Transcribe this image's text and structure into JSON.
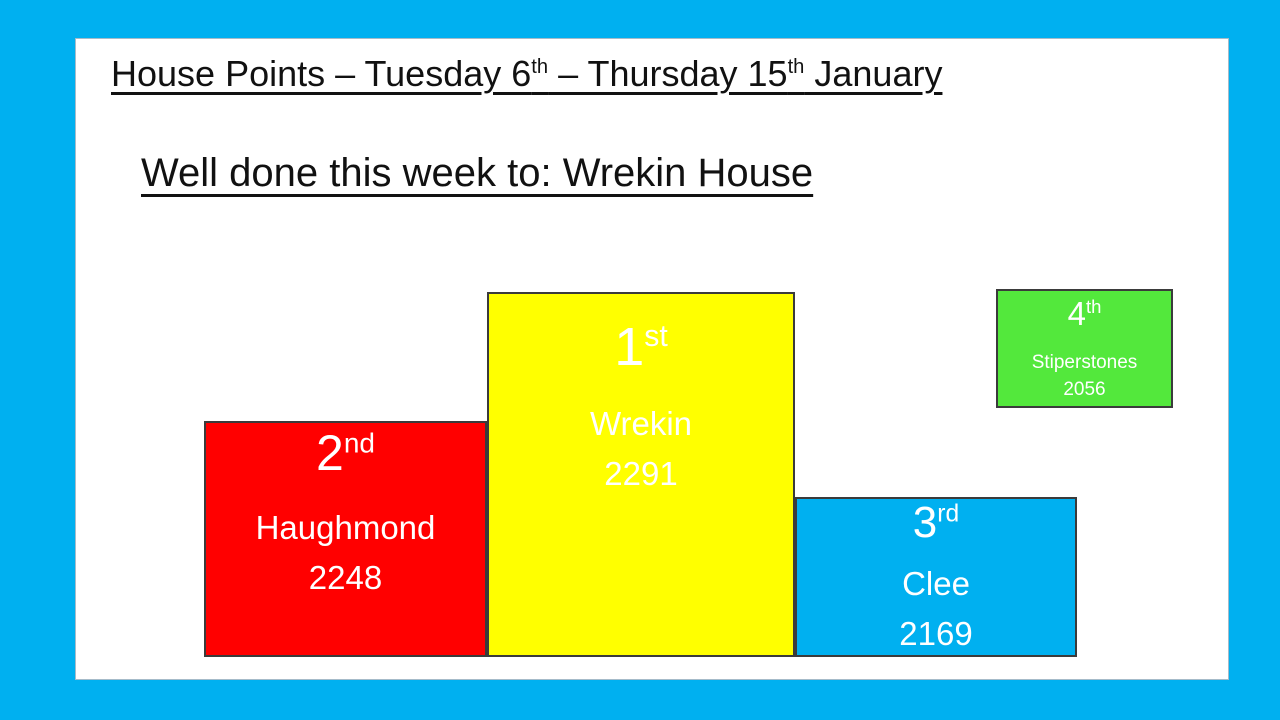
{
  "slide": {
    "background_color": "#00B0F0",
    "canvas_color": "#FFFFFF",
    "title": {
      "text_before_first_sup": "House Points – Tuesday 6",
      "first_sup": "th",
      "text_between_sups": " – Thursday 15",
      "second_sup": "th",
      "text_after_sups": " January"
    },
    "subtitle": "Well done this week to: Wrekin House"
  },
  "podium": {
    "first": {
      "rank_number": "1",
      "rank_suffix": "st",
      "house_name": "Wrekin",
      "points": "2291",
      "fill_color": "#FFFF00",
      "text_color": "#FFFFFF"
    },
    "second": {
      "rank_number": "2",
      "rank_suffix": "nd",
      "house_name": "Haughmond",
      "points": "2248",
      "fill_color": "#FF0000",
      "text_color": "#FFFFFF"
    },
    "third": {
      "rank_number": "3",
      "rank_suffix": "rd",
      "house_name": "Clee",
      "points": "2169",
      "fill_color": "#00B0F0",
      "text_color": "#FFFFFF"
    },
    "fourth": {
      "rank_number": "4",
      "rank_suffix": "th",
      "house_name": "Stiperstones",
      "points": "2056",
      "fill_color": "#53E83C",
      "text_color": "#FFFFFF"
    }
  }
}
